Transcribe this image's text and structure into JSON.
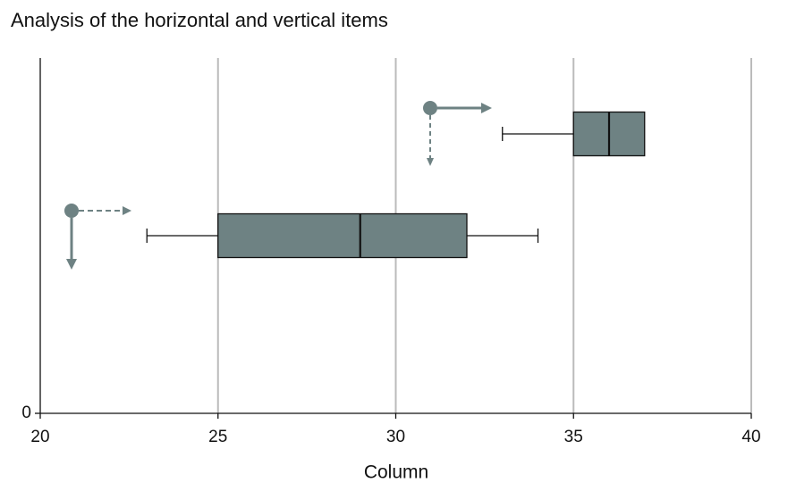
{
  "chart_data": {
    "type": "boxplot",
    "title": "Analysis of the horizontal and vertical items",
    "xlabel": "Column",
    "categories": [
      null,
      null
    ],
    "boxes": [
      {
        "min": 33,
        "q1": 35,
        "median": 36,
        "q3": 37,
        "max": 37
      },
      {
        "min": 23,
        "q1": 25,
        "median": 29,
        "q3": 32,
        "max": 34
      }
    ],
    "color": "#6e8283",
    "xlim": [
      20,
      40
    ],
    "xticks": [
      20,
      25,
      30,
      35,
      40
    ],
    "yticks": [
      0
    ],
    "grid": true
  }
}
